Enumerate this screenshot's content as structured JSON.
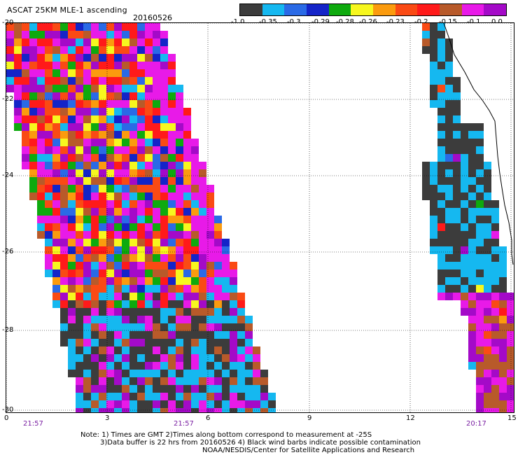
{
  "header": {
    "title": "ASCAT 25KM MLE-1 ascending",
    "date": "20160526"
  },
  "colorbar": {
    "colors": [
      "#3c3c3c",
      "#15b8f0",
      "#2a6ae6",
      "#1424c8",
      "#0eaa0e",
      "#f7f71e",
      "#fb9b0e",
      "#fa4a14",
      "#ff1a1a",
      "#b85a2a",
      "#e81ae8",
      "#a40ac8"
    ],
    "labels": [
      "-1.0",
      "-0.35",
      "-0.3",
      "-0.29",
      "-0.28",
      "-0.26",
      "-0.23",
      "-0.2",
      "-0.15",
      "-0.1",
      "0.0"
    ]
  },
  "axes": {
    "lat_labels": [
      "-20",
      "-22",
      "-24",
      "-26",
      "-28",
      "-30"
    ],
    "lon_labels": [
      "0",
      "3",
      "6",
      "9",
      "12",
      "15"
    ],
    "time_labels": [
      "21:57",
      "21:57",
      "20:17"
    ]
  },
  "notes": {
    "line1": "Note: 1) Times are GMT 2)Times along bottom correspond to measurement at -25S",
    "line2": "3)Data buffer is 22 hrs from 20160526 4) Black wind barbs indicate possible contamination",
    "line3": "NOAA/NESDIS/Center for Satellite Applications and Research"
  }
}
